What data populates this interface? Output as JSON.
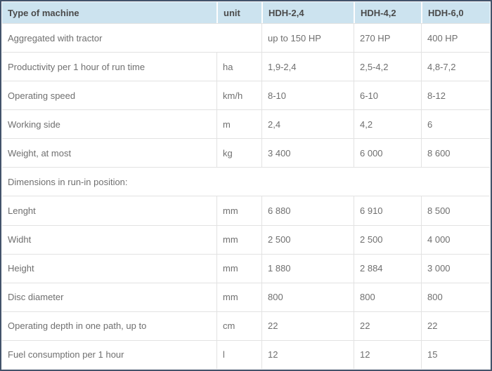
{
  "table": {
    "columns": [
      "Type of machine",
      "unit",
      "HDH-2,4",
      "HDH-4,2",
      "HDH-6,0"
    ],
    "rows": [
      {
        "label": "Aggregated with tractor",
        "label_colspan": 2,
        "values": [
          "up to 150 HP",
          "270 HP",
          "400 HP"
        ]
      },
      {
        "label": "Productivity per 1 hour of run time",
        "unit": "ha",
        "values": [
          "1,9-2,4",
          "2,5-4,2",
          "4,8-7,2"
        ]
      },
      {
        "label": "Operating speed",
        "unit": "km/h",
        "values": [
          "8-10",
          "6-10",
          "8-12"
        ]
      },
      {
        "label": "Working side",
        "unit": "m",
        "values": [
          "2,4",
          "4,2",
          "6"
        ]
      },
      {
        "label": "Weight, at most",
        "unit": "kg",
        "values": [
          "3 400",
          "6 000",
          "8 600"
        ]
      },
      {
        "label": "Dimensions in run-in position:",
        "section": true
      },
      {
        "label": "Lenght",
        "unit": "mm",
        "values": [
          "6 880",
          "6 910",
          "8 500"
        ]
      },
      {
        "label": "Widht",
        "unit": "mm",
        "values": [
          "2 500",
          "2 500",
          "4 000"
        ]
      },
      {
        "label": "Height",
        "unit": "mm",
        "values": [
          "1 880",
          "2 884",
          "3 000"
        ]
      },
      {
        "label": "Disc diameter",
        "unit": "mm",
        "values": [
          "800",
          "800",
          "800"
        ]
      },
      {
        "label": "Operating depth in one path, up to",
        "unit": "cm",
        "values": [
          "22",
          "22",
          "22"
        ]
      },
      {
        "label": "Fuel consumption per 1 hour",
        "unit": "l",
        "values": [
          "12",
          "12",
          "15"
        ]
      }
    ],
    "colors": {
      "header_bg": "#cce3ef",
      "outer_border": "#43536b",
      "grid_line": "#e2e2e2",
      "header_text": "#4a4a4a",
      "body_text": "#6f6f6f"
    }
  }
}
